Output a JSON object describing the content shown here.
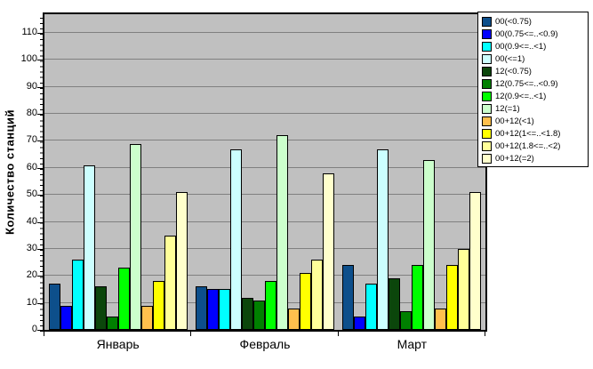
{
  "chart_data": {
    "type": "bar",
    "title": "",
    "xlabel": "",
    "ylabel": "Количество станций",
    "categories": [
      "Январь",
      "Февраль",
      "Март"
    ],
    "y_ticks": [
      0,
      10,
      20,
      30,
      40,
      50,
      60,
      70,
      80,
      90,
      100,
      110
    ],
    "ylim": [
      0,
      118
    ],
    "grid": true,
    "legend_position": "top-right",
    "plot_background": "#C0C0C0",
    "gridline_color": "#808080",
    "series": [
      {
        "name": "00(<0.75)",
        "color": "#0D4F8B",
        "values": [
          17,
          16,
          24
        ]
      },
      {
        "name": "00(0.75<=..<0.9)",
        "color": "#0000FF",
        "values": [
          9,
          15,
          5
        ]
      },
      {
        "name": "00(0.9<=..<1)",
        "color": "#00FFFF",
        "values": [
          26,
          15,
          17
        ]
      },
      {
        "name": "00(<=1)",
        "color": "#CCFFFF",
        "values": [
          61,
          67,
          67
        ]
      },
      {
        "name": "12(<0.75)",
        "color": "#0B460B",
        "values": [
          16,
          12,
          19
        ]
      },
      {
        "name": "12(0.75<=..<0.9)",
        "color": "#008000",
        "values": [
          5,
          11,
          7
        ]
      },
      {
        "name": "12(0.9<=..<1)",
        "color": "#00FF00",
        "values": [
          23,
          18,
          24
        ]
      },
      {
        "name": "12(=1)",
        "color": "#CCFFCC",
        "values": [
          69,
          72,
          63
        ]
      },
      {
        "name": "00+12(<1)",
        "color": "#FFC04D",
        "values": [
          9,
          8,
          8
        ]
      },
      {
        "name": "00+12(1<=..<1.8)",
        "color": "#FFFF00",
        "values": [
          18,
          21,
          24
        ]
      },
      {
        "name": "00+12(1.8<=..<2)",
        "color": "#FFFF99",
        "values": [
          35,
          26,
          30
        ]
      },
      {
        "name": "00+12(=2)",
        "color": "#FFFFCC",
        "values": [
          51,
          58,
          51
        ]
      }
    ]
  }
}
